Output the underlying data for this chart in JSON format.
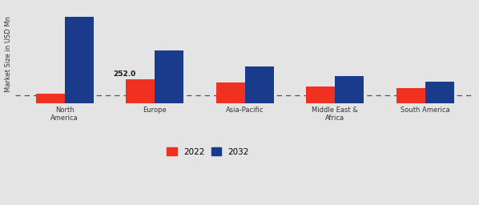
{
  "categories": [
    "North\nAmerica",
    "Europe",
    "Asia-Pacific",
    "Middle East &\nAfrica",
    "South America"
  ],
  "values_2022": [
    100,
    252,
    220,
    175,
    160
  ],
  "values_2032": [
    920,
    560,
    390,
    285,
    230
  ],
  "bar_color_2022": "#f03020",
  "bar_color_2032": "#1a3a8c",
  "annotation_text": "252.0",
  "annotation_category_idx": 1,
  "ylabel": "Market Size in USD Mn",
  "legend_labels": [
    "2022",
    "2032"
  ],
  "background_color_top": "#e0e0e0",
  "background_color_bottom": "#d8d8d8",
  "dashed_line_y": 80,
  "bar_width": 0.32,
  "ylim": [
    0,
    1050
  ],
  "figsize": [
    5.98,
    2.56
  ]
}
